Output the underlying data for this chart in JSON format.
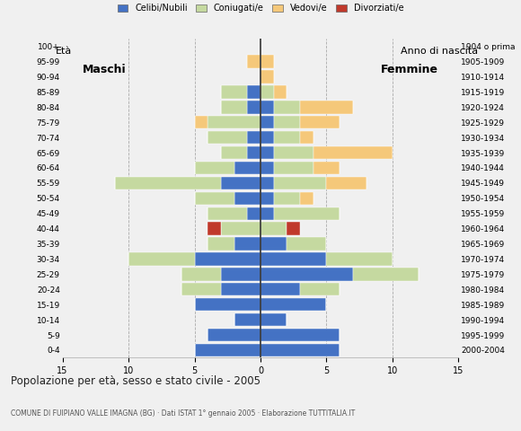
{
  "age_groups": [
    "0-4",
    "5-9",
    "10-14",
    "15-19",
    "20-24",
    "25-29",
    "30-34",
    "35-39",
    "40-44",
    "45-49",
    "50-54",
    "55-59",
    "60-64",
    "65-69",
    "70-74",
    "75-79",
    "80-84",
    "85-89",
    "90-94",
    "95-99",
    "100+"
  ],
  "birth_years": [
    "2000-2004",
    "1995-1999",
    "1990-1994",
    "1985-1989",
    "1980-1984",
    "1975-1979",
    "1970-1974",
    "1965-1969",
    "1960-1964",
    "1955-1959",
    "1950-1954",
    "1945-1949",
    "1940-1944",
    "1935-1939",
    "1930-1934",
    "1925-1929",
    "1920-1924",
    "1915-1919",
    "1910-1914",
    "1905-1909",
    "1904 o prima"
  ],
  "male": {
    "single": [
      5,
      4,
      2,
      5,
      3,
      3,
      5,
      2,
      0,
      1,
      2,
      3,
      2,
      1,
      1,
      0,
      1,
      1,
      0,
      0,
      0
    ],
    "married": [
      0,
      0,
      0,
      0,
      3,
      3,
      5,
      2,
      3,
      3,
      3,
      8,
      3,
      2,
      3,
      4,
      2,
      2,
      0,
      0,
      0
    ],
    "widowed": [
      0,
      0,
      0,
      0,
      0,
      0,
      0,
      0,
      0,
      0,
      0,
      0,
      0,
      0,
      0,
      1,
      0,
      0,
      0,
      1,
      0
    ],
    "divorced": [
      0,
      0,
      0,
      0,
      0,
      0,
      0,
      0,
      1,
      0,
      0,
      0,
      0,
      0,
      0,
      0,
      0,
      0,
      0,
      0,
      0
    ]
  },
  "female": {
    "single": [
      6,
      6,
      2,
      5,
      3,
      7,
      5,
      2,
      0,
      1,
      1,
      1,
      1,
      1,
      1,
      1,
      1,
      0,
      0,
      0,
      0
    ],
    "married": [
      0,
      0,
      0,
      0,
      3,
      5,
      5,
      3,
      2,
      5,
      2,
      4,
      3,
      3,
      2,
      2,
      2,
      1,
      0,
      0,
      0
    ],
    "widowed": [
      0,
      0,
      0,
      0,
      0,
      0,
      0,
      0,
      0,
      0,
      1,
      3,
      2,
      6,
      1,
      3,
      4,
      1,
      1,
      1,
      0
    ],
    "divorced": [
      0,
      0,
      0,
      0,
      0,
      0,
      0,
      0,
      1,
      0,
      0,
      0,
      0,
      0,
      0,
      0,
      0,
      0,
      0,
      0,
      0
    ]
  },
  "colors": {
    "single": "#4472c4",
    "married": "#c5d9a0",
    "widowed": "#f5c87a",
    "divorced": "#c0392b"
  },
  "xlim": 15,
  "title": "Popolazione per età, sesso e stato civile - 2005",
  "subtitle": "COMUNE DI FUIPIANO VALLE IMAGNA (BG) · Dati ISTAT 1° gennaio 2005 · Elaborazione TUTTITALIA.IT",
  "legend_labels": [
    "Celibi/Nubili",
    "Coniugati/e",
    "Vedovi/e",
    "Divorziati/e"
  ],
  "ylabel_left": "Età",
  "ylabel_right": "Anno di nascita",
  "label_maschi": "Maschi",
  "label_femmine": "Femmine",
  "background_color": "#f0f0f0",
  "bar_height": 0.85
}
